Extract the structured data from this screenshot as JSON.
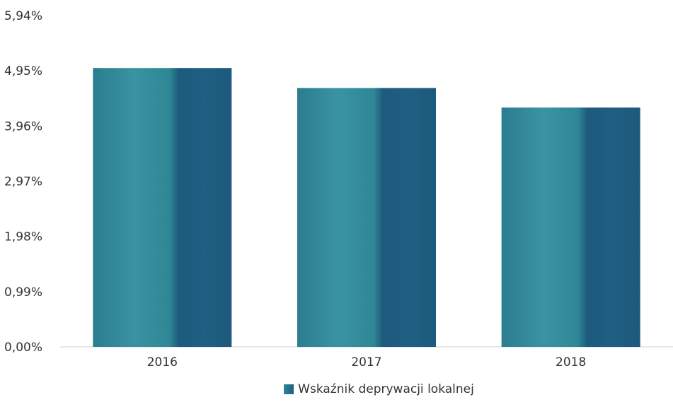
{
  "colors": {
    "bar_light": "#2f8796",
    "bar_dark": "#1e5f82",
    "axis": "#d0d0d0",
    "text": "#333333"
  },
  "chart_data": {
    "type": "bar",
    "categories": [
      "2016",
      "2017",
      "2018"
    ],
    "series": [
      {
        "name": "Wskaźnik deprywacji lokalnej",
        "values": [
          5.0,
          4.64,
          4.29
        ]
      }
    ],
    "y_ticks": [
      {
        "value": 0,
        "label": "0,00%"
      },
      {
        "value": 0.99,
        "label": "0,99%"
      },
      {
        "value": 1.98,
        "label": "1,98%"
      },
      {
        "value": 2.97,
        "label": "2,97%"
      },
      {
        "value": 3.96,
        "label": "3,96%"
      },
      {
        "value": 4.95,
        "label": "4,95%"
      },
      {
        "value": 5.94,
        "label": "5,94%"
      }
    ],
    "ylim": [
      0,
      5.94
    ],
    "grid": false,
    "legend_position": "bottom-center"
  }
}
